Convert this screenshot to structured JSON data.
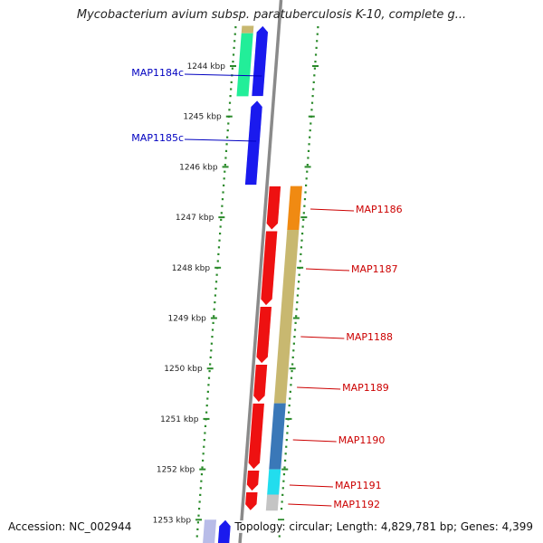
{
  "title": "Mycobacterium avium subsp. paratuberculosis K-10, complete g...",
  "footer": {
    "accession": "Accession: NC_002944",
    "summary": "Topology: circular; Length: 4,829,781 bp; Genes: 4,399"
  },
  "colors": {
    "backbone": "#8a8a8a",
    "tick": "#2a8a2a",
    "forward_label": "#0000c0",
    "reverse_label": "#cc0000"
  },
  "chart_data": {
    "type": "genome-map",
    "position_unit": "kbp",
    "visible_range_kbp": [
      1243.2,
      1253.5
    ],
    "scale_ticks": [
      {
        "value": 1244,
        "label": "1244 kbp"
      },
      {
        "value": 1245,
        "label": "1245 kbp"
      },
      {
        "value": 1246,
        "label": "1246 kbp"
      },
      {
        "value": 1247,
        "label": "1247 kbp"
      },
      {
        "value": 1248,
        "label": "1248 kbp"
      },
      {
        "value": 1249,
        "label": "1249 kbp"
      },
      {
        "value": 1250,
        "label": "1250 kbp"
      },
      {
        "value": 1251,
        "label": "1251 kbp"
      },
      {
        "value": 1252,
        "label": "1252 kbp"
      },
      {
        "value": 1253,
        "label": "1253 kbp"
      }
    ],
    "genes_strand_minus": [
      {
        "label": "MAP1184c",
        "start_kbp": 1243.2,
        "end_kbp": 1244.6,
        "color": "#1a1aee"
      },
      {
        "label": "MAP1185c",
        "start_kbp": 1244.68,
        "end_kbp": 1246.36,
        "color": "#1a1aee"
      },
      {
        "label": "",
        "start_kbp": 1253.0,
        "end_kbp": 1253.5,
        "color": "#1a1aee"
      }
    ],
    "genes_strand_plus": [
      {
        "label": "MAP1186",
        "start_kbp": 1246.38,
        "end_kbp": 1247.25,
        "color": "#ee1111"
      },
      {
        "label": "MAP1187",
        "start_kbp": 1247.27,
        "end_kbp": 1248.75,
        "color": "#ee1111"
      },
      {
        "label": "MAP1188",
        "start_kbp": 1248.77,
        "end_kbp": 1249.9,
        "color": "#ee1111"
      },
      {
        "label": "MAP1189",
        "start_kbp": 1249.92,
        "end_kbp": 1250.67,
        "color": "#ee1111"
      },
      {
        "label": "MAP1190",
        "start_kbp": 1250.69,
        "end_kbp": 1252.0,
        "color": "#ee1111"
      },
      {
        "label": "MAP1191",
        "start_kbp": 1252.02,
        "end_kbp": 1252.43,
        "color": "#ee1111"
      },
      {
        "label": "MAP1192",
        "start_kbp": 1252.45,
        "end_kbp": 1252.82,
        "color": "#ee1111"
      }
    ],
    "category_strips_minus": [
      {
        "start_kbp": 1243.2,
        "end_kbp": 1243.35,
        "color": "#c8b870"
      },
      {
        "start_kbp": 1243.35,
        "end_kbp": 1244.6,
        "color": "#22ee99"
      },
      {
        "start_kbp": 1253.0,
        "end_kbp": 1253.5,
        "color": "#b8bce8"
      }
    ],
    "category_strips_plus": [
      {
        "start_kbp": 1246.38,
        "end_kbp": 1247.25,
        "color": "#f08a12"
      },
      {
        "start_kbp": 1247.25,
        "end_kbp": 1250.69,
        "color": "#c8b870"
      },
      {
        "start_kbp": 1250.69,
        "end_kbp": 1252.0,
        "color": "#3a78b8"
      },
      {
        "start_kbp": 1252.0,
        "end_kbp": 1252.5,
        "color": "#22ddee"
      },
      {
        "start_kbp": 1252.5,
        "end_kbp": 1252.82,
        "color": "#c4c4c4"
      }
    ]
  }
}
